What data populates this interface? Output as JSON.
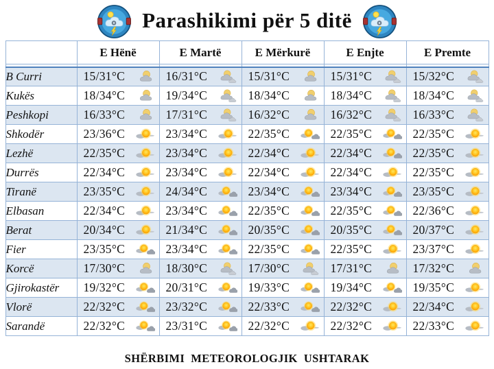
{
  "title": "Parashikimi për 5 ditë",
  "footer": "SHËRBIMI  METEOROLOGJIK  USHTARAK",
  "logo_name": "military-meteorological-service-logo",
  "colors": {
    "row_alt_blue": "#dce6f1",
    "table_border": "#95b3d7",
    "header_divider": "#4f81bd",
    "sun_orange": "#ff9900",
    "cloud_gray": "#9aa1ab"
  },
  "table": {
    "day_headers": [
      "E Hënë",
      "E Martë",
      "E Mërkurë",
      "E Enjte",
      "E Premte"
    ],
    "rows": [
      {
        "city": "B Curri",
        "cells": [
          {
            "temp": "15/31°C",
            "icon": "sun-behind-cloud"
          },
          {
            "temp": "16/31°C",
            "icon": "sun-behind-clouds-shower"
          },
          {
            "temp": "15/31°C",
            "icon": "sun-behind-cloud"
          },
          {
            "temp": "15/31°C",
            "icon": "sun-behind-clouds-shower"
          },
          {
            "temp": "15/32°C",
            "icon": "sun-behind-clouds-shower"
          }
        ]
      },
      {
        "city": "Kukës",
        "cells": [
          {
            "temp": "18/34°C",
            "icon": "sun-behind-cloud"
          },
          {
            "temp": "19/34°C",
            "icon": "sun-behind-clouds-shower"
          },
          {
            "temp": "18/34°C",
            "icon": "sun-behind-cloud"
          },
          {
            "temp": "18/34°C",
            "icon": "sun-behind-clouds-shower"
          },
          {
            "temp": "18/34°C",
            "icon": "sun-behind-clouds-shower"
          }
        ]
      },
      {
        "city": "Peshkopi",
        "cells": [
          {
            "temp": "16/33°C",
            "icon": "sun-behind-cloud"
          },
          {
            "temp": "17/31°C",
            "icon": "sun-behind-clouds-shower"
          },
          {
            "temp": "16/32°C",
            "icon": "sun-behind-cloud"
          },
          {
            "temp": "16/32°C",
            "icon": "sun-behind-clouds-shower"
          },
          {
            "temp": "16/33°C",
            "icon": "sun-behind-clouds-shower"
          }
        ]
      },
      {
        "city": "Shkodër",
        "cells": [
          {
            "temp": "23/36°C",
            "icon": "mostly-sunny"
          },
          {
            "temp": "23/34°C",
            "icon": "mostly-sunny"
          },
          {
            "temp": "22/35°C",
            "icon": "sun-with-shower-cloud"
          },
          {
            "temp": "22/35°C",
            "icon": "sun-with-shower-cloud"
          },
          {
            "temp": "22/35°C",
            "icon": "mostly-sunny"
          }
        ]
      },
      {
        "city": "Lezhë",
        "cells": [
          {
            "temp": "22/35°C",
            "icon": "mostly-sunny"
          },
          {
            "temp": "23/34°C",
            "icon": "mostly-sunny"
          },
          {
            "temp": "22/34°C",
            "icon": "mostly-sunny"
          },
          {
            "temp": "22/34°C",
            "icon": "sun-with-shower-cloud"
          },
          {
            "temp": "22/35°C",
            "icon": "mostly-sunny"
          }
        ]
      },
      {
        "city": "Durrës",
        "cells": [
          {
            "temp": "22/34°C",
            "icon": "mostly-sunny"
          },
          {
            "temp": "23/34°C",
            "icon": "mostly-sunny"
          },
          {
            "temp": "22/34°C",
            "icon": "mostly-sunny"
          },
          {
            "temp": "22/34°C",
            "icon": "mostly-sunny"
          },
          {
            "temp": "22/35°C",
            "icon": "mostly-sunny"
          }
        ]
      },
      {
        "city": "Tiranë",
        "cells": [
          {
            "temp": "23/35°C",
            "icon": "mostly-sunny"
          },
          {
            "temp": "24/34°C",
            "icon": "sun-with-shower-cloud"
          },
          {
            "temp": "23/34°C",
            "icon": "sun-with-shower-cloud"
          },
          {
            "temp": "23/34°C",
            "icon": "sun-with-shower-cloud"
          },
          {
            "temp": "23/35°C",
            "icon": "mostly-sunny"
          }
        ]
      },
      {
        "city": "Elbasan",
        "cells": [
          {
            "temp": "22/34°C",
            "icon": "mostly-sunny"
          },
          {
            "temp": "23/34°C",
            "icon": "sun-with-shower-cloud"
          },
          {
            "temp": "22/35°C",
            "icon": "sun-with-shower-cloud"
          },
          {
            "temp": "22/35°C",
            "icon": "sun-with-shower-cloud"
          },
          {
            "temp": "22/36°C",
            "icon": "mostly-sunny"
          }
        ]
      },
      {
        "city": "Berat",
        "cells": [
          {
            "temp": "20/34°C",
            "icon": "mostly-sunny"
          },
          {
            "temp": "21/34°C",
            "icon": "sun-with-shower-cloud"
          },
          {
            "temp": "20/35°C",
            "icon": "sun-with-shower-cloud"
          },
          {
            "temp": "20/35°C",
            "icon": "sun-with-shower-cloud"
          },
          {
            "temp": "20/37°C",
            "icon": "mostly-sunny"
          }
        ]
      },
      {
        "city": "Fier",
        "cells": [
          {
            "temp": "23/35°C",
            "icon": "sun-with-shower-cloud"
          },
          {
            "temp": "23/34°C",
            "icon": "sun-with-shower-cloud"
          },
          {
            "temp": "22/35°C",
            "icon": "sun-with-shower-cloud"
          },
          {
            "temp": "22/35°C",
            "icon": "mostly-sunny"
          },
          {
            "temp": "23/37°C",
            "icon": "mostly-sunny"
          }
        ]
      },
      {
        "city": "Korcë",
        "cells": [
          {
            "temp": "17/30°C",
            "icon": "sun-behind-cloud"
          },
          {
            "temp": "18/30°C",
            "icon": "sun-behind-clouds-shower"
          },
          {
            "temp": "17/30°C",
            "icon": "sun-behind-clouds-shower"
          },
          {
            "temp": "17/31°C",
            "icon": "sun-behind-cloud"
          },
          {
            "temp": "17/32°C",
            "icon": "sun-behind-cloud"
          }
        ]
      },
      {
        "city": "Gjirokastër",
        "cells": [
          {
            "temp": "19/32°C",
            "icon": "sun-with-shower-cloud"
          },
          {
            "temp": "20/31°C",
            "icon": "sun-with-shower-cloud"
          },
          {
            "temp": "19/33°C",
            "icon": "sun-with-shower-cloud"
          },
          {
            "temp": "19/34°C",
            "icon": "sun-with-shower-cloud"
          },
          {
            "temp": "19/35°C",
            "icon": "mostly-sunny"
          }
        ]
      },
      {
        "city": "Vlorë",
        "cells": [
          {
            "temp": "22/32°C",
            "icon": "sun-with-shower-cloud"
          },
          {
            "temp": "23/32°C",
            "icon": "sun-with-shower-cloud"
          },
          {
            "temp": "22/33°C",
            "icon": "sun-with-shower-cloud"
          },
          {
            "temp": "22/32°C",
            "icon": "mostly-sunny"
          },
          {
            "temp": "22/34°C",
            "icon": "mostly-sunny"
          }
        ]
      },
      {
        "city": "Sarandë",
        "cells": [
          {
            "temp": "22/32°C",
            "icon": "sun-with-shower-cloud"
          },
          {
            "temp": "23/31°C",
            "icon": "sun-with-shower-cloud"
          },
          {
            "temp": "22/32°C",
            "icon": "mostly-sunny"
          },
          {
            "temp": "22/32°C",
            "icon": "mostly-sunny"
          },
          {
            "temp": "22/33°C",
            "icon": "mostly-sunny"
          }
        ]
      }
    ]
  }
}
